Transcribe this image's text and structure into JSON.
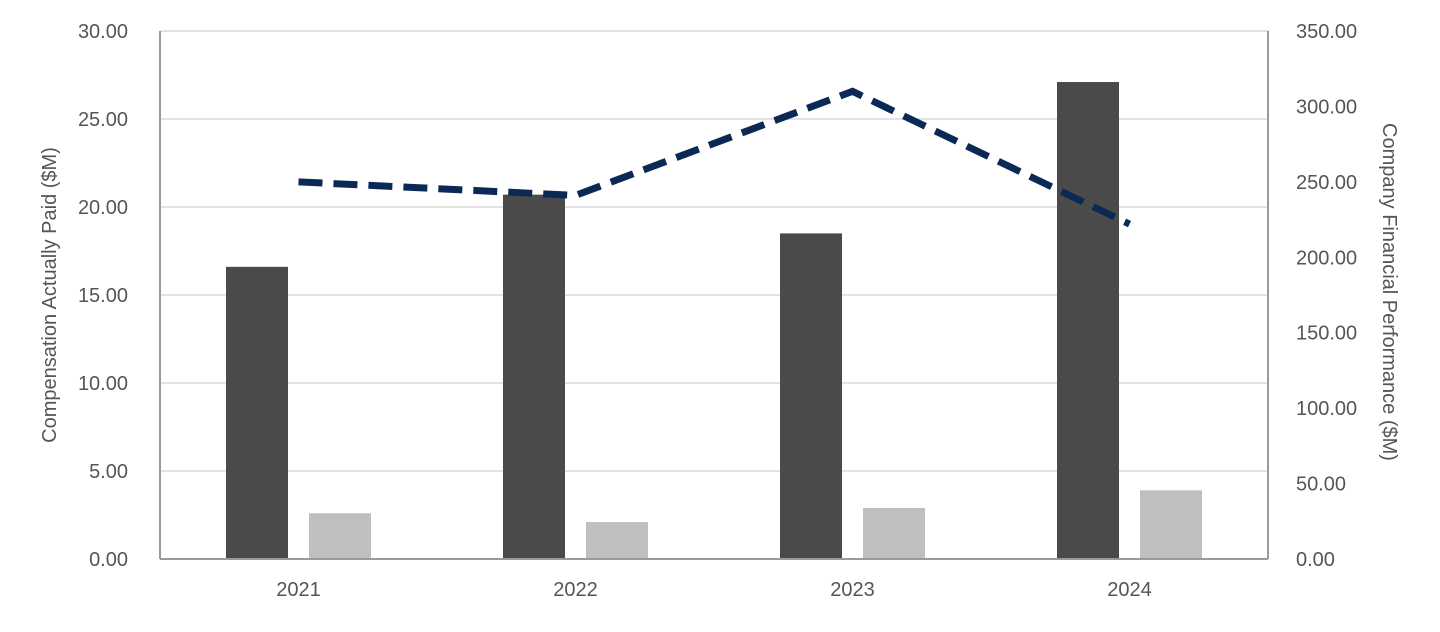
{
  "chart_data": {
    "type": "bar",
    "categories": [
      "2021",
      "2022",
      "2023",
      "2024"
    ],
    "y_left": {
      "label": "Compensation Actually Paid ($M)",
      "range": [
        0,
        30
      ],
      "ticks": [
        "0.00",
        "5.00",
        "10.00",
        "15.00",
        "20.00",
        "25.00",
        "30.00"
      ]
    },
    "y_right": {
      "label": "Company Financial Performance ($M)",
      "range": [
        0,
        350
      ],
      "ticks": [
        "0.00",
        "50.00",
        "100.00",
        "150.00",
        "200.00",
        "250.00",
        "300.00",
        "350.00"
      ]
    },
    "series": [
      {
        "type": "bar",
        "axis": "left",
        "color": "#4a4a4a",
        "values": [
          16.6,
          20.7,
          18.5,
          27.1
        ]
      },
      {
        "type": "bar",
        "axis": "left",
        "color": "#bfbfbf",
        "values": [
          2.6,
          2.1,
          2.9,
          3.9
        ]
      },
      {
        "type": "line",
        "axis": "right",
        "color": "#0a2a55",
        "dashed": true,
        "values": [
          250,
          241,
          310,
          222
        ]
      }
    ],
    "grid": true,
    "legend": "none"
  }
}
